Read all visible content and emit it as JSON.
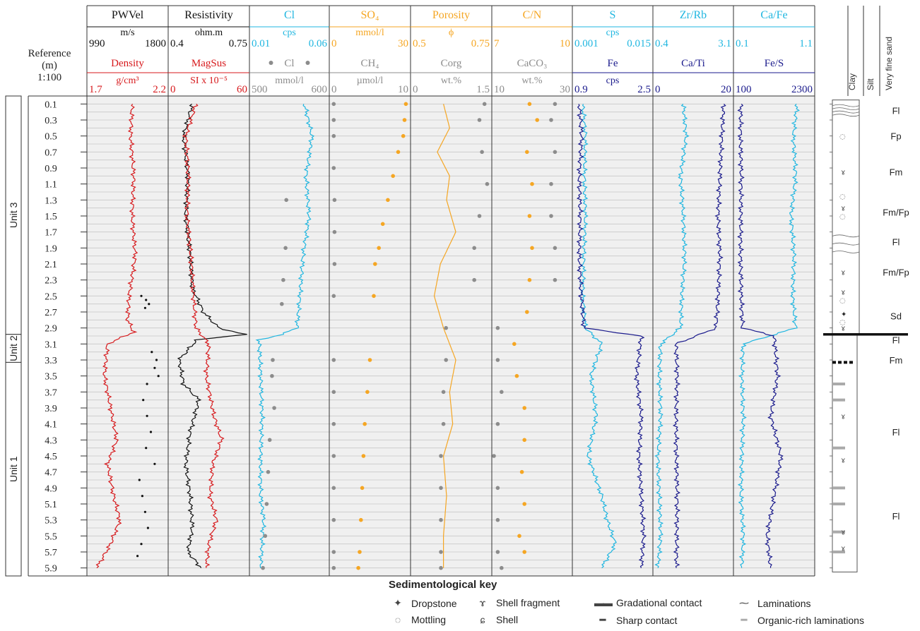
{
  "reference": {
    "title": "Reference",
    "unit": "(m)",
    "scale": "1:100",
    "depth_ticks": [
      "0.1",
      "0.3",
      "0.5",
      "0.7",
      "0.9",
      "1.1",
      "1.3",
      "1.5",
      "1.7",
      "1.9",
      "2.1",
      "2.3",
      "2.5",
      "2.7",
      "2.9",
      "3.1",
      "3.3",
      "3.5",
      "3.7",
      "3.9",
      "4.1",
      "4.3",
      "4.5",
      "4.7",
      "4.9",
      "5.1",
      "5.3",
      "5.5",
      "5.7",
      "5.9"
    ]
  },
  "units": [
    {
      "label": "Unit 3",
      "from": 0.0,
      "to": 2.98
    },
    {
      "label": "Unit 2",
      "from": 2.98,
      "to": 3.33
    },
    {
      "label": "Unit 1",
      "from": 3.33,
      "to": 6.0
    }
  ],
  "colors": {
    "black": "#111111",
    "red": "#d7191c",
    "cyan": "#1fb6e0",
    "orange": "#f5a623",
    "grey": "#8c8c8c",
    "navy": "#1a1a8c",
    "grid": "#c8c8c8",
    "panel": "#f0f0f0"
  },
  "tracks": [
    {
      "id": "pwvel",
      "top_label": "PWVel",
      "top_color": "#111111",
      "top_unit": "m/s",
      "top_min": "990",
      "top_max": "1800",
      "bot_label": "Density",
      "bot_color": "#d7191c",
      "bot_unit": "g/cm³",
      "bot_min": "1.7",
      "bot_max": "2.2"
    },
    {
      "id": "resistivity",
      "top_label": "Resistivity",
      "top_color": "#111111",
      "top_unit": "ohm.m",
      "top_min": "0.4",
      "top_max": "0.75",
      "bot_label": "MagSus",
      "bot_color": "#d7191c",
      "bot_unit": "SI x 10⁻⁵",
      "bot_min": "0",
      "bot_max": "60"
    },
    {
      "id": "cl",
      "top_label": "Cl",
      "top_color": "#1fb6e0",
      "top_unit": "cps",
      "top_min": "0.01",
      "top_max": "0.06",
      "bot_label": "Cl",
      "bot_color": "#8c8c8c",
      "bot_unit": "mmol/l",
      "bot_min": "500",
      "bot_max": "600",
      "bot_dots": true
    },
    {
      "id": "so4",
      "top_label": "SO₄",
      "top_color": "#f5a623",
      "top_unit": "mmol/l",
      "top_min": "0",
      "top_max": "30",
      "bot_label": "CH₄",
      "bot_color": "#8c8c8c",
      "bot_unit": "µmol/l",
      "bot_min": "0",
      "bot_max": "10"
    },
    {
      "id": "porosity",
      "top_label": "Porosity",
      "top_color": "#f5a623",
      "top_unit": "ϕ",
      "top_min": "0.5",
      "top_max": "0.75",
      "bot_label": "Corg",
      "bot_color": "#8c8c8c",
      "bot_unit": "wt.%",
      "bot_min": "0",
      "bot_max": "1.5"
    },
    {
      "id": "cn",
      "top_label": "C/N",
      "top_color": "#f5a623",
      "top_unit": "",
      "top_min": "7",
      "top_max": "10",
      "bot_label": "CaCO₃",
      "bot_color": "#8c8c8c",
      "bot_unit": "wt.%",
      "bot_min": "10",
      "bot_max": "30"
    },
    {
      "id": "s",
      "top_label": "S",
      "top_color": "#1fb6e0",
      "top_unit": "cps",
      "top_min": "0.001",
      "top_max": "0.015",
      "bot_label": "Fe",
      "bot_color": "#1a1a8c",
      "bot_unit": "cps",
      "bot_min": "0.9",
      "bot_max": "2.5"
    },
    {
      "id": "zrrb",
      "top_label": "Zr/Rb",
      "top_color": "#1fb6e0",
      "top_unit": "",
      "top_min": "0.4",
      "top_max": "3.1",
      "bot_label": "Ca/Ti",
      "bot_color": "#1a1a8c",
      "bot_unit": "",
      "bot_min": "0",
      "bot_max": "20"
    },
    {
      "id": "cafe",
      "top_label": "Ca/Fe",
      "top_color": "#1fb6e0",
      "top_unit": "",
      "top_min": "0.1",
      "top_max": "1.1",
      "bot_label": "Fe/S",
      "bot_color": "#1a1a8c",
      "bot_unit": "",
      "bot_min": "100",
      "bot_max": "2300"
    }
  ],
  "lithology": {
    "grain_labels": [
      "Clay",
      "Silt",
      "Very fine sand"
    ],
    "facies": [
      {
        "label": "Fl",
        "depth": 0.18
      },
      {
        "label": "Fp",
        "depth": 0.5
      },
      {
        "label": "Fm",
        "depth": 0.95
      },
      {
        "label": "Fm/Fp",
        "depth": 1.45
      },
      {
        "label": "Fl",
        "depth": 1.82
      },
      {
        "label": "Fm/Fp",
        "depth": 2.2
      },
      {
        "label": "Sd",
        "depth": 2.75
      },
      {
        "label": "Fl",
        "depth": 3.05
      },
      {
        "label": "Fm",
        "depth": 3.3
      },
      {
        "label": "Fl",
        "depth": 4.2
      },
      {
        "label": "Fl",
        "depth": 5.25
      }
    ]
  },
  "chart_data": {
    "type": "line",
    "depth_axis": {
      "label": "Reference (m)",
      "range": [
        0.0,
        6.0
      ],
      "ticks": [
        0.1,
        0.3,
        0.5,
        0.7,
        0.9,
        1.1,
        1.3,
        1.5,
        1.7,
        1.9,
        2.1,
        2.3,
        2.5,
        2.7,
        2.9,
        3.1,
        3.3,
        3.5,
        3.7,
        3.9,
        4.1,
        4.3,
        4.5,
        4.7,
        4.9,
        5.1,
        5.3,
        5.5,
        5.7,
        5.9
      ],
      "reversed": true
    },
    "grid": true,
    "series": [
      {
        "name": "Density",
        "track": "pwvel",
        "style": "line",
        "range": [
          1.7,
          2.2
        ],
        "depth": [
          0.1,
          0.5,
          1.0,
          1.5,
          2.0,
          2.5,
          2.8,
          2.95,
          3.1,
          3.5,
          4.0,
          4.3,
          4.6,
          5.0,
          5.3,
          5.6,
          5.9
        ],
        "values": [
          1.98,
          1.97,
          1.99,
          1.98,
          2.0,
          1.96,
          1.95,
          1.99,
          1.82,
          1.8,
          1.85,
          1.88,
          1.82,
          1.86,
          1.9,
          1.84,
          1.75
        ]
      },
      {
        "name": "PWVel",
        "track": "pwvel",
        "style": "dots",
        "range": [
          990,
          1800
        ],
        "depth": [
          2.5,
          2.55,
          2.6,
          2.65,
          3.2,
          3.3,
          3.4,
          3.5,
          3.6,
          3.8,
          4.0,
          4.2,
          4.4,
          4.6,
          4.8,
          5.0,
          5.2,
          5.4,
          5.6,
          5.75
        ],
        "values": [
          1540,
          1590,
          1620,
          1580,
          1650,
          1700,
          1680,
          1720,
          1600,
          1560,
          1600,
          1640,
          1590,
          1680,
          1520,
          1550,
          1580,
          1610,
          1540,
          1500
        ]
      },
      {
        "name": "Resistivity",
        "track": "resistivity",
        "style": "line",
        "range": [
          0.4,
          0.75
        ],
        "depth": [
          0.1,
          0.5,
          1.0,
          1.5,
          2.0,
          2.4,
          2.7,
          2.9,
          2.98,
          3.05,
          3.3,
          3.6,
          3.8,
          4.2,
          4.6,
          5.0,
          5.4,
          5.7,
          5.9
        ],
        "values": [
          0.5,
          0.46,
          0.48,
          0.47,
          0.49,
          0.5,
          0.55,
          0.62,
          0.74,
          0.52,
          0.44,
          0.46,
          0.53,
          0.49,
          0.47,
          0.49,
          0.5,
          0.48,
          0.54
        ]
      },
      {
        "name": "MagSus",
        "track": "resistivity",
        "style": "line",
        "range": [
          0,
          60
        ],
        "depth": [
          0.1,
          0.5,
          1.0,
          1.5,
          2.0,
          2.5,
          2.9,
          3.1,
          3.5,
          4.0,
          4.3,
          4.6,
          5.0,
          5.3,
          5.6,
          5.9
        ],
        "values": [
          20,
          12,
          14,
          13,
          16,
          18,
          20,
          30,
          28,
          34,
          40,
          33,
          31,
          36,
          30,
          28
        ]
      },
      {
        "name": "Cl",
        "track": "cl",
        "style": "line",
        "range": [
          0.01,
          0.06
        ],
        "depth": [
          0.1,
          0.5,
          1.0,
          1.5,
          2.0,
          2.5,
          2.9,
          2.98,
          3.05,
          3.5,
          4.0,
          4.5,
          5.0,
          5.3,
          5.6,
          5.9
        ],
        "values": [
          0.045,
          0.05,
          0.046,
          0.048,
          0.044,
          0.042,
          0.04,
          0.03,
          0.015,
          0.016,
          0.017,
          0.016,
          0.016,
          0.018,
          0.017,
          0.016
        ]
      },
      {
        "name": "Cl",
        "track": "cl",
        "style": "dots",
        "range": [
          500,
          600
        ],
        "depth": [
          1.3,
          1.9,
          2.3,
          2.6,
          3.3,
          3.5,
          3.9,
          4.3,
          4.7,
          5.1,
          5.5,
          5.9
        ],
        "values": [
          546,
          545,
          542,
          540,
          528,
          527,
          530,
          524,
          522,
          520,
          518,
          515
        ]
      },
      {
        "name": "SO4",
        "track": "so4",
        "style": "dots",
        "range": [
          0,
          30
        ],
        "depth": [
          0.1,
          0.3,
          0.5,
          0.7,
          1.0,
          1.3,
          1.6,
          1.9,
          2.1,
          2.5,
          3.3,
          3.7,
          4.1,
          4.5,
          4.9,
          5.3,
          5.7,
          5.9
        ],
        "values": [
          29,
          28.5,
          28,
          26,
          24,
          22,
          20,
          18.5,
          17,
          16.5,
          15,
          14,
          13,
          12.5,
          12,
          11.5,
          11,
          10.5
        ]
      },
      {
        "name": "CH4",
        "track": "so4",
        "style": "dots",
        "range": [
          0,
          10
        ],
        "depth": [
          0.1,
          0.3,
          0.5,
          0.9,
          1.3,
          1.7,
          2.1,
          2.5,
          3.3,
          3.7,
          4.1,
          4.5,
          4.9,
          5.3,
          5.7,
          5.9
        ],
        "values": [
          0.3,
          0.3,
          0.3,
          0.3,
          0.4,
          0.4,
          0.4,
          0.3,
          0.3,
          0.3,
          0.3,
          0.3,
          0.3,
          0.3,
          0.3,
          0.3
        ]
      },
      {
        "name": "Porosity",
        "track": "porosity",
        "style": "line",
        "range": [
          0.5,
          0.75
        ],
        "depth": [
          0.1,
          0.4,
          0.7,
          1.0,
          1.3,
          1.7,
          2.1,
          2.5,
          2.9,
          3.3,
          3.7,
          4.1,
          4.5,
          5.0,
          5.5,
          5.9
        ],
        "values": [
          0.6,
          0.62,
          0.58,
          0.62,
          0.61,
          0.64,
          0.59,
          0.57,
          0.6,
          0.64,
          0.62,
          0.63,
          0.6,
          0.61,
          0.6,
          0.6
        ]
      },
      {
        "name": "Corg",
        "track": "porosity",
        "style": "dots",
        "range": [
          0,
          1.5
        ],
        "depth": [
          0.1,
          0.3,
          0.7,
          1.1,
          1.5,
          1.9,
          2.3,
          2.9,
          3.3,
          3.7,
          4.1,
          4.5,
          4.9,
          5.3,
          5.7,
          5.9
        ],
        "values": [
          1.4,
          1.3,
          1.35,
          1.45,
          1.3,
          1.2,
          1.2,
          0.65,
          0.65,
          0.6,
          0.6,
          0.55,
          0.55,
          0.55,
          0.55,
          0.55
        ]
      },
      {
        "name": "C/N",
        "track": "cn",
        "style": "dots",
        "range": [
          7,
          10
        ],
        "depth": [
          0.1,
          0.3,
          0.7,
          1.1,
          1.5,
          1.9,
          2.3,
          2.7,
          3.1,
          3.5,
          3.9,
          4.3,
          4.7,
          5.1,
          5.5,
          5.7
        ],
        "values": [
          8.4,
          8.7,
          8.3,
          8.5,
          8.4,
          8.5,
          8.4,
          8.3,
          7.8,
          7.9,
          8.2,
          8.2,
          8.1,
          8.2,
          8.0,
          8.2
        ]
      },
      {
        "name": "CaCO3",
        "track": "cn",
        "style": "dots",
        "range": [
          10,
          30
        ],
        "depth": [
          0.1,
          0.3,
          0.7,
          1.1,
          1.5,
          1.9,
          2.3,
          2.9,
          3.3,
          3.7,
          4.1,
          4.5,
          4.9,
          5.3,
          5.7,
          5.9
        ],
        "values": [
          26,
          25,
          26,
          25,
          25,
          26,
          26,
          11,
          11,
          12,
          11,
          10,
          11,
          11,
          11,
          12
        ]
      },
      {
        "name": "S",
        "track": "s",
        "style": "line",
        "range": [
          0.001,
          0.015
        ],
        "depth": [
          0.1,
          0.5,
          1.0,
          1.5,
          2.0,
          2.5,
          2.9,
          3.1,
          3.5,
          4.0,
          4.5,
          5.0,
          5.3,
          5.6,
          5.9
        ],
        "values": [
          0.0025,
          0.003,
          0.0028,
          0.003,
          0.0027,
          0.0025,
          0.003,
          0.006,
          0.004,
          0.005,
          0.0035,
          0.006,
          0.007,
          0.0085,
          0.006
        ]
      },
      {
        "name": "Fe",
        "track": "s",
        "style": "line",
        "range": [
          0.9,
          2.5
        ],
        "depth": [
          0.1,
          0.5,
          1.0,
          1.5,
          2.0,
          2.5,
          2.9,
          3.0,
          3.5,
          4.0,
          4.5,
          5.0,
          5.5,
          5.9
        ],
        "values": [
          1.0,
          1.05,
          1.0,
          1.02,
          1.0,
          1.04,
          1.1,
          2.3,
          2.2,
          2.3,
          2.25,
          2.3,
          2.35,
          2.3
        ]
      },
      {
        "name": "Zr/Rb",
        "track": "zrrb",
        "style": "line",
        "range": [
          0.4,
          3.1
        ],
        "depth": [
          0.1,
          0.5,
          1.0,
          1.5,
          2.0,
          2.5,
          2.9,
          3.1,
          3.5,
          4.0,
          4.5,
          5.0,
          5.5,
          5.9
        ],
        "values": [
          1.4,
          1.5,
          1.3,
          1.4,
          1.45,
          1.35,
          1.3,
          0.6,
          0.55,
          0.6,
          0.5,
          0.55,
          0.6,
          0.5
        ]
      },
      {
        "name": "Ca/Ti",
        "track": "zrrb",
        "style": "line",
        "range": [
          0,
          20
        ],
        "depth": [
          0.1,
          0.5,
          1.0,
          1.5,
          2.0,
          2.5,
          2.9,
          3.1,
          3.5,
          4.0,
          4.5,
          5.0,
          5.5,
          5.9
        ],
        "values": [
          18,
          17.5,
          17,
          16.5,
          17,
          16.5,
          16,
          5.5,
          5.8,
          5.5,
          5.6,
          5.8,
          5.7,
          5.6
        ]
      },
      {
        "name": "Ca/Fe",
        "track": "cafe",
        "style": "line",
        "range": [
          0.1,
          1.1
        ],
        "depth": [
          0.1,
          0.5,
          1.0,
          1.5,
          2.0,
          2.5,
          2.9,
          3.1,
          3.5,
          4.0,
          4.5,
          5.0,
          5.5,
          5.9
        ],
        "values": [
          0.9,
          0.85,
          0.88,
          0.82,
          0.86,
          0.84,
          0.88,
          0.2,
          0.18,
          0.2,
          0.18,
          0.17,
          0.2,
          0.18
        ]
      },
      {
        "name": "Fe/S",
        "track": "cafe",
        "style": "line",
        "range": [
          100,
          2300
        ],
        "depth": [
          0.1,
          0.5,
          1.0,
          1.5,
          2.0,
          2.5,
          2.9,
          3.0,
          3.5,
          4.0,
          4.5,
          5.0,
          5.5,
          5.9
        ],
        "values": [
          250,
          240,
          260,
          250,
          240,
          260,
          300,
          1200,
          1300,
          1100,
          1400,
          1200,
          1000,
          1100
        ]
      }
    ]
  },
  "legend": {
    "title": "Sedimentological key",
    "items": [
      {
        "label": "Dropstone",
        "icon": "dropstone-icon"
      },
      {
        "label": "Shell fragment",
        "icon": "shell-fragment-icon"
      },
      {
        "label": "Gradational contact",
        "icon": "gradational-contact-icon"
      },
      {
        "label": "Laminations",
        "icon": "laminations-icon"
      },
      {
        "label": "Mottling",
        "icon": "mottling-icon"
      },
      {
        "label": "Shell",
        "icon": "shell-icon"
      },
      {
        "label": "Sharp contact",
        "icon": "sharp-contact-icon"
      },
      {
        "label": "Organic-rich laminations",
        "icon": "organic-laminations-icon"
      }
    ]
  }
}
